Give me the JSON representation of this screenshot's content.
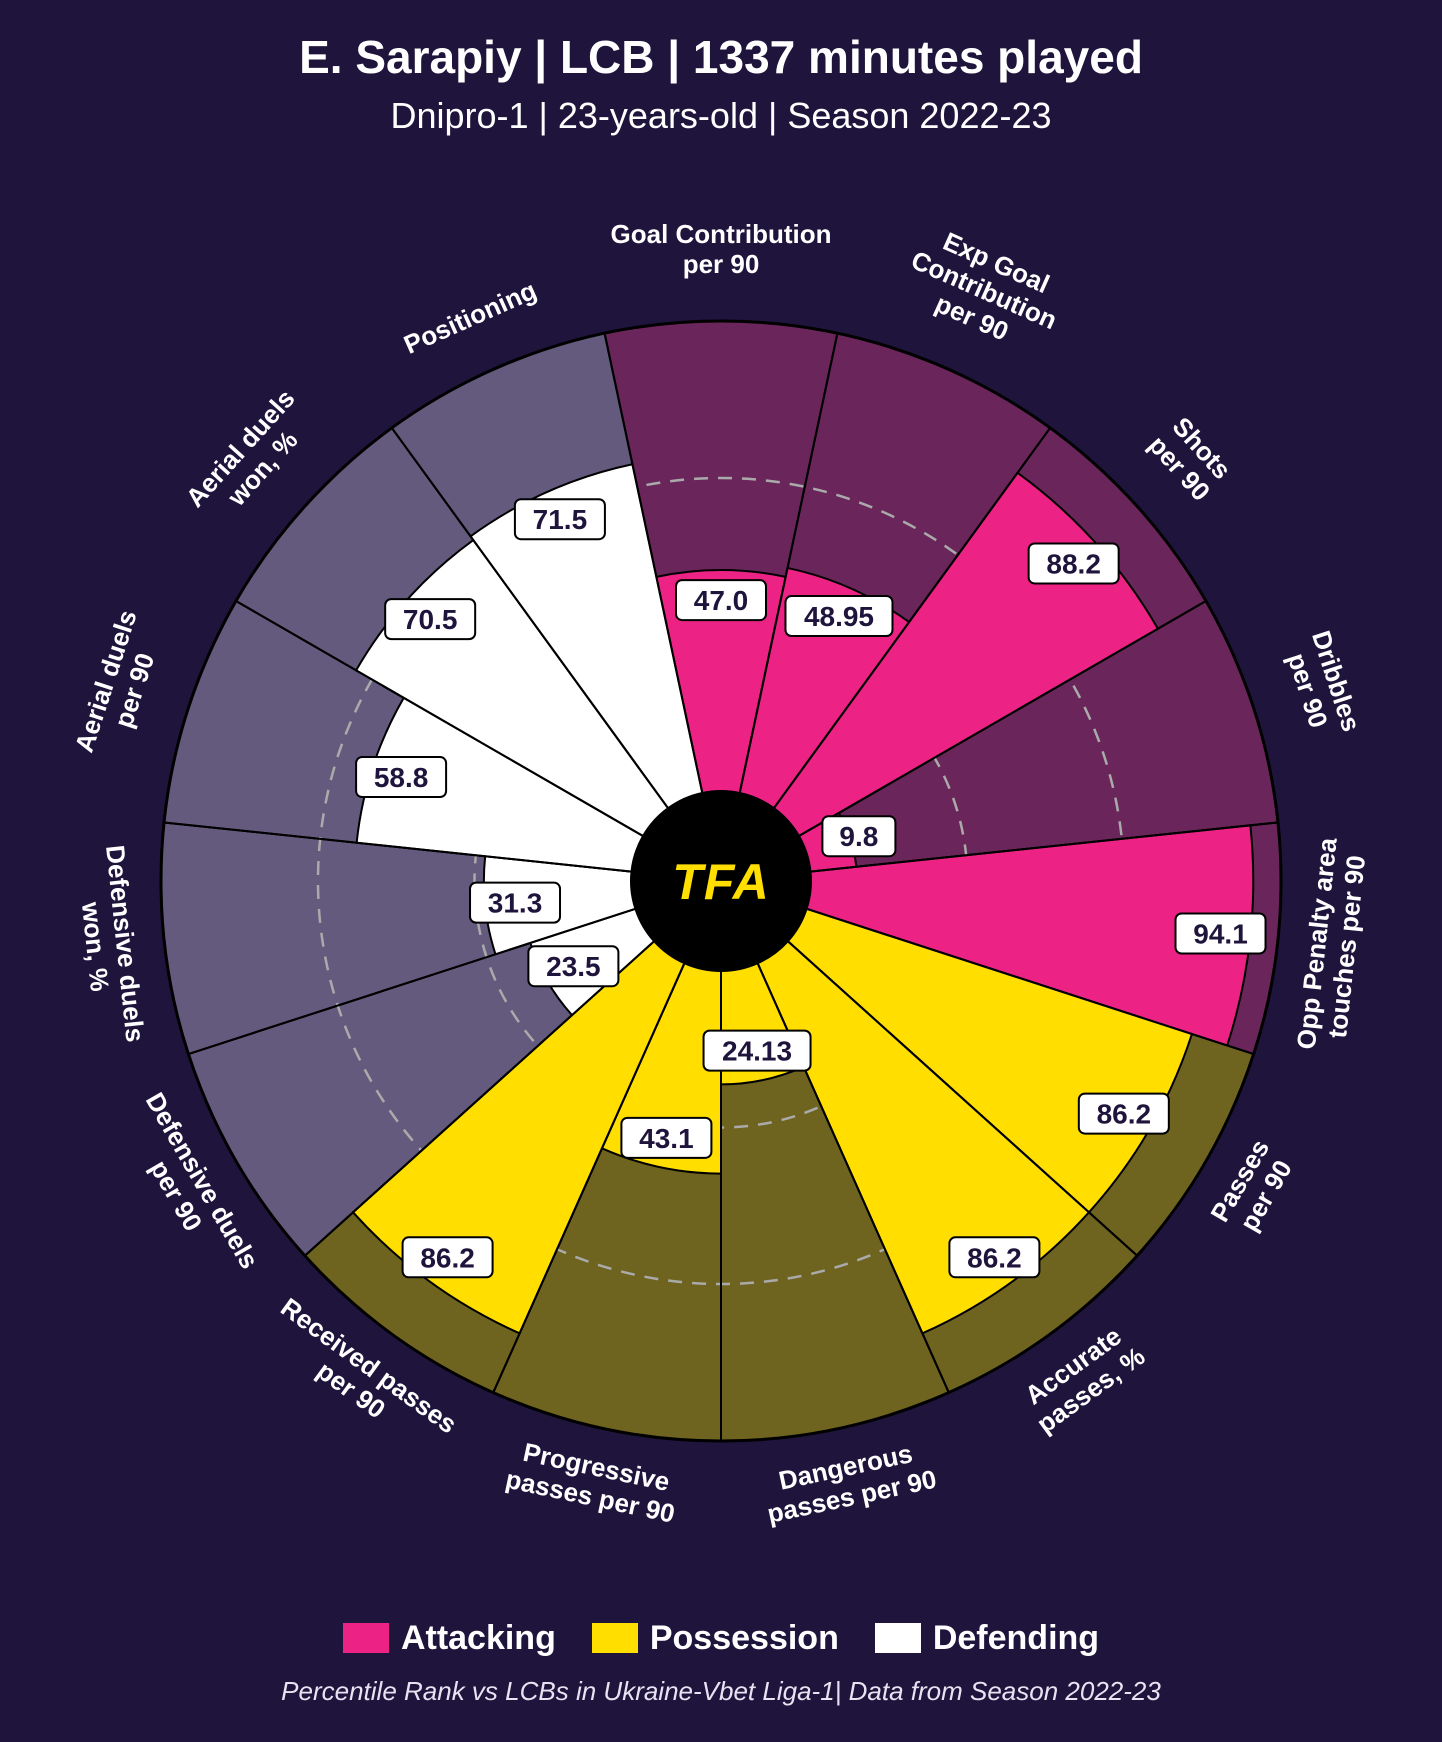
{
  "title": "E. Sarapiy | LCB | 1337 minutes played",
  "subtitle": "Dnipro-1 | 23-years-old | Season 2022-23",
  "center_logo": "TFA",
  "footnote": "Percentile Rank vs LCBs in Ukraine-Vbet Liga-1| Data from Season 2022-23",
  "colors": {
    "background": "#1f143c",
    "attacking_fg": "#ec2385",
    "attacking_bg": "#6a265a",
    "possession_fg": "#ffde00",
    "possession_bg": "#6e631f",
    "defending_fg": "#ffffff",
    "defending_bg": "#635a7d",
    "center": "#000000",
    "grid": "#aaaaaa",
    "divider": "#000000"
  },
  "legend": [
    {
      "label": "Attacking",
      "color": "#ec2385"
    },
    {
      "label": "Possession",
      "color": "#ffde00"
    },
    {
      "label": "Defending",
      "color": "#ffffff"
    }
  ],
  "chart": {
    "type": "polar-bar",
    "outer_radius": 560,
    "inner_radius": 90,
    "grid_rings": [
      33.3,
      66.6
    ],
    "segments": [
      {
        "label": "Goal Contribution per 90",
        "value": 47.0,
        "display": "47.0",
        "category": "attacking"
      },
      {
        "label": "Exp Goal Contribution per 90",
        "value": 48.95,
        "display": "48.95",
        "category": "attacking"
      },
      {
        "label": "Shots per 90",
        "value": 88.2,
        "display": "88.2",
        "category": "attacking"
      },
      {
        "label": "Dribbles per 90",
        "value": 9.8,
        "display": "9.8",
        "category": "attacking"
      },
      {
        "label": "Opp Penalty area touches per 90",
        "value": 94.1,
        "display": "94.1",
        "category": "attacking"
      },
      {
        "label": "Passes per 90",
        "value": 86.2,
        "display": "86.2",
        "category": "possession"
      },
      {
        "label": "Accurate passes, %",
        "value": 86.2,
        "display": "86.2",
        "category": "possession"
      },
      {
        "label": "Dangerous passes per 90",
        "value": 24.13,
        "display": "24.13",
        "category": "possession"
      },
      {
        "label": "Progressive passes per 90",
        "value": 43.1,
        "display": "43.1",
        "category": "possession"
      },
      {
        "label": "Received passes per 90",
        "value": 86.2,
        "display": "86.2",
        "category": "possession"
      },
      {
        "label": "Defensive duels per 90",
        "value": 23.5,
        "display": "23.5",
        "category": "defending"
      },
      {
        "label": "Defensive duels won, %",
        "value": 31.3,
        "display": "31.3",
        "category": "defending"
      },
      {
        "label": "Aerial duels per 90",
        "value": 58.8,
        "display": "58.8",
        "category": "defending"
      },
      {
        "label": "Aerial duels won, %",
        "value": 70.5,
        "display": "70.5",
        "category": "defending"
      },
      {
        "label": "Positioning",
        "value": 71.5,
        "display": "71.5",
        "category": "defending"
      }
    ],
    "label_lines": {
      "Goal Contribution per 90": [
        "Goal Contribution",
        "per 90"
      ],
      "Exp Goal Contribution per 90": [
        "Exp Goal",
        "Contribution",
        "per 90"
      ],
      "Shots per 90": [
        "Shots",
        "per 90"
      ],
      "Dribbles per 90": [
        "Dribbles",
        "per 90"
      ],
      "Opp Penalty area touches per 90": [
        "Opp Penalty area",
        "touches per 90"
      ],
      "Passes per 90": [
        "Passes",
        "per 90"
      ],
      "Accurate passes, %": [
        "Accurate",
        "passes, %"
      ],
      "Dangerous passes per 90": [
        "Dangerous",
        "passes per 90"
      ],
      "Progressive passes per 90": [
        "Progressive",
        "passes per 90"
      ],
      "Received passes per 90": [
        "Received passes",
        "per 90"
      ],
      "Defensive duels per 90": [
        "Defensive duels",
        "per 90"
      ],
      "Defensive duels won, %": [
        "Defensive duels",
        "won, %"
      ],
      "Aerial duels per 90": [
        "Aerial duels",
        "per 90"
      ],
      "Aerial duels won, %": [
        "Aerial duels",
        "won, %"
      ],
      "Positioning": [
        "Positioning"
      ]
    }
  }
}
